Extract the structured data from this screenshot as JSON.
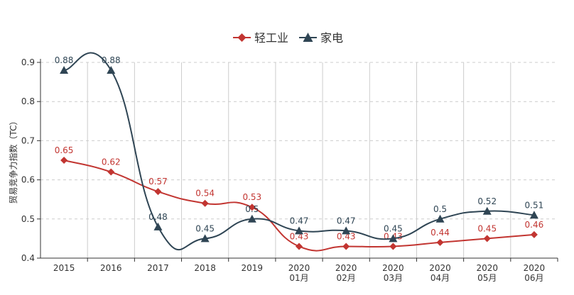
{
  "chart_data": {
    "type": "line",
    "categories": [
      "2015",
      "2016",
      "2017",
      "2018",
      "2019",
      "2020\n01月",
      "2020\n02月",
      "2020\n03月",
      "2020\n04月",
      "2020\n05月",
      "2020\n06月"
    ],
    "series": [
      {
        "name": "轻工业",
        "color": "#c23531",
        "marker": "diamond",
        "values": [
          0.65,
          0.62,
          0.57,
          0.54,
          0.53,
          0.43,
          0.43,
          0.43,
          0.44,
          0.45,
          0.46
        ]
      },
      {
        "name": "家电",
        "color": "#2f4554",
        "marker": "triangle",
        "values": [
          0.88,
          0.88,
          0.48,
          0.45,
          0.5,
          0.47,
          0.47,
          0.45,
          0.5,
          0.52,
          0.51
        ]
      }
    ],
    "ylabel": "贸易竞争力指数（TC）",
    "ylim": [
      0.4,
      0.9
    ],
    "yticks": [
      "0.4",
      "0.5",
      "0.6",
      "0.7",
      "0.8",
      "0.9"
    ],
    "smooth": true,
    "grid": true,
    "legend": "top-center"
  }
}
